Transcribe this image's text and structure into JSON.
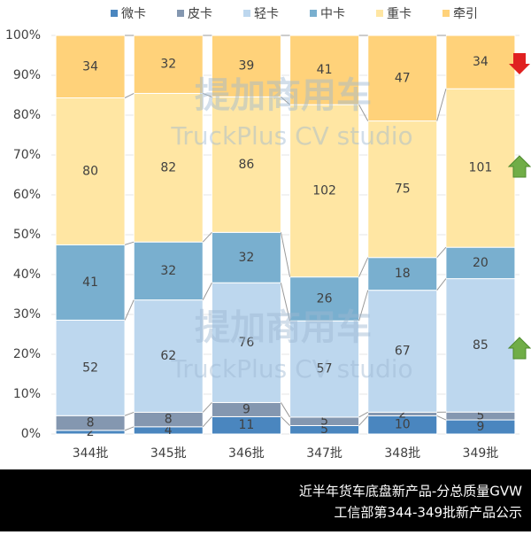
{
  "chart_data": {
    "type": "bar",
    "stacking": "percent",
    "categories": [
      "344批",
      "345批",
      "346批",
      "347批",
      "348批",
      "349批"
    ],
    "series": [
      {
        "name": "微卡",
        "color": "#4a86bf",
        "values": [
          2,
          4,
          11,
          5,
          10,
          9
        ]
      },
      {
        "name": "皮卡",
        "color": "#8497b0",
        "values": [
          8,
          8,
          9,
          5,
          2,
          5
        ]
      },
      {
        "name": "轻卡",
        "color": "#bdd7ee",
        "values": [
          52,
          62,
          76,
          57,
          67,
          85
        ]
      },
      {
        "name": "中卡",
        "color": "#79afcf",
        "values": [
          41,
          32,
          32,
          26,
          18,
          20
        ]
      },
      {
        "name": "重卡",
        "color": "#ffe6a3",
        "values": [
          80,
          82,
          86,
          102,
          75,
          101
        ]
      },
      {
        "name": "牵引",
        "color": "#ffd27a",
        "values": [
          34,
          32,
          39,
          41,
          47,
          34
        ]
      }
    ],
    "ylim": [
      0,
      100
    ],
    "yticks": [
      {
        "value": 0,
        "label": "0%"
      },
      {
        "value": 10,
        "label": "10%"
      },
      {
        "value": 20,
        "label": "20%"
      },
      {
        "value": 30,
        "label": "30%"
      },
      {
        "value": 40,
        "label": "40%"
      },
      {
        "value": 50,
        "label": "50%"
      },
      {
        "value": 60,
        "label": "60%"
      },
      {
        "value": 70,
        "label": "70%"
      },
      {
        "value": 80,
        "label": "80%"
      },
      {
        "value": 90,
        "label": "90%"
      },
      {
        "value": 100,
        "label": "100%"
      }
    ],
    "grid": true,
    "legend": "top",
    "watermark": {
      "brand": "提加商用车",
      "sub": "TruckPlus CV studio"
    },
    "footer": [
      "近半年货车底盘新产品-分总质量GVW",
      "工信部第344-349批新产品公示"
    ]
  }
}
